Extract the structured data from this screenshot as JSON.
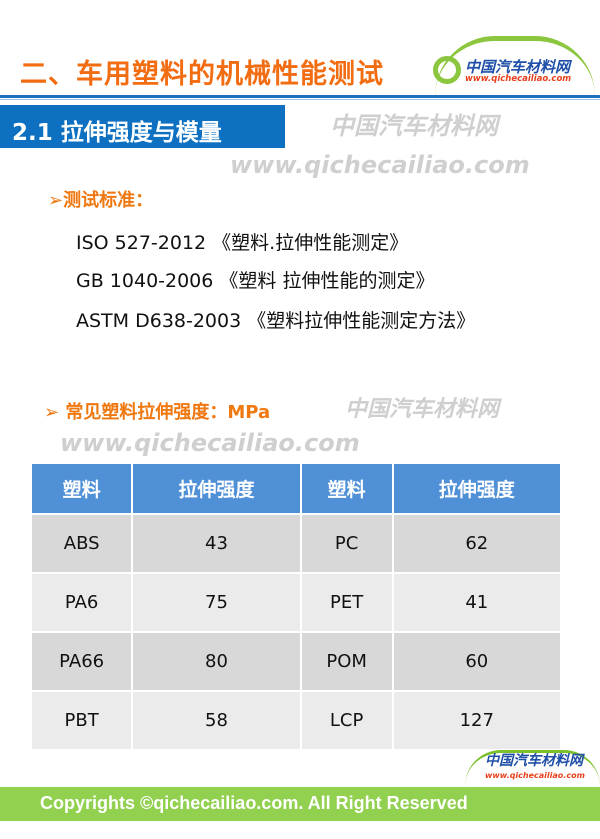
{
  "header": {
    "title": "二、车用塑料的机械性能测试",
    "logo_cn": "中国汽车材料网",
    "logo_url": "www.qichecailiao.com"
  },
  "section": {
    "title": "2.1 拉伸强度与模量"
  },
  "watermark": {
    "cn": "中国汽车材料网",
    "url": "www.qichecailiao.com"
  },
  "standards": {
    "heading": "➢测试标准：",
    "items": [
      "ISO 527-2012 《塑料.拉伸性能测定》",
      "GB 1040-2006 《塑料 拉伸性能的测定》",
      "ASTM D638-2003 《塑料拉伸性能测定方法》"
    ]
  },
  "strength": {
    "heading": "➢ 常见塑料拉伸强度：MPa"
  },
  "table": {
    "headers": [
      "塑料",
      "拉伸强度",
      "塑料",
      "拉伸强度"
    ],
    "rows": [
      [
        "ABS",
        "43",
        "PC",
        "62"
      ],
      [
        "PA6",
        "75",
        "PET",
        "41"
      ],
      [
        "PA66",
        "80",
        "POM",
        "60"
      ],
      [
        "PBT",
        "58",
        "LCP",
        "127"
      ]
    ]
  },
  "footer": {
    "text": "Copyrights ©qichecailiao.com. All Right Reserved",
    "logo_cn": "中国汽车材料网",
    "logo_url": "www.qichecailiao.com"
  },
  "colors": {
    "title": "#f26c12",
    "section_bg": "#0d70c0",
    "table_header": "#4f90d6",
    "footer": "#92d050"
  }
}
